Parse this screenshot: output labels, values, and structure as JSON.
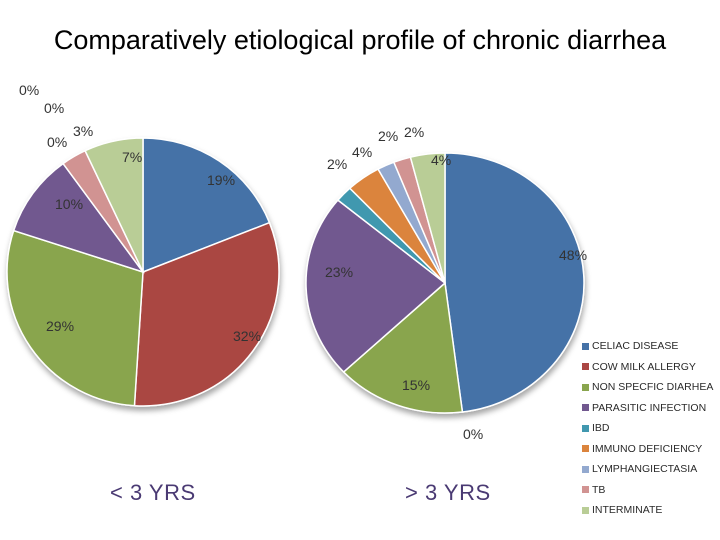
{
  "title": "Comparatively etiological profile of chronic diarrhea",
  "colors": {
    "CELIAC DISEASE": "#4572A7",
    "COW MILK ALLERGY": "#AA4643",
    "NON SPECFIC DIARHEA": "#89A54E",
    "PARASITIC INFECTION": "#71588F",
    "IBD": "#4198AF",
    "IMMUNO DEFICIENCY": "#DB843D",
    "LYMPHANGIECTASIA": "#93A9CF",
    "TB": "#D19392",
    "INTERMINATE": "#B9CD96"
  },
  "chart_data": [
    {
      "type": "pie",
      "title": "< 3 YRS",
      "categories": [
        "CELIAC DISEASE",
        "COW MILK ALLERGY",
        "NON SPECFIC DIARHEA",
        "PARASITIC INFECTION",
        "IBD",
        "IMMUNO DEFICIENCY",
        "LYMPHANGIECTASIA",
        "TB",
        "INTERMINATE"
      ],
      "values": [
        19,
        32,
        29,
        10,
        0,
        0,
        0,
        3,
        7
      ],
      "labels": [
        "19%",
        "32%",
        "29%",
        "10%",
        "0%",
        "0%",
        "0%",
        "3%",
        "7%"
      ]
    },
    {
      "type": "pie",
      "title": "> 3 YRS",
      "categories": [
        "CELIAC DISEASE",
        "COW MILK ALLERGY",
        "NON SPECFIC DIARHEA",
        "PARASITIC INFECTION",
        "IBD",
        "IMMUNO DEFICIENCY",
        "LYMPHANGIECTASIA",
        "TB",
        "INTERMINATE"
      ],
      "values": [
        48,
        0,
        15,
        23,
        2,
        4,
        2,
        2,
        4
      ],
      "labels": [
        "48%",
        "0%",
        "15%",
        "23%",
        "2%",
        "4%",
        "2%",
        "2%",
        "4%"
      ]
    }
  ],
  "legend": [
    "CELIAC DISEASE",
    "COW MILK ALLERGY",
    "NON SPECFIC DIARHEA",
    "PARASITIC INFECTION",
    "IBD",
    "IMMUNO DEFICIENCY",
    "LYMPHANGIECTASIA",
    "TB",
    "INTERMINATE"
  ]
}
